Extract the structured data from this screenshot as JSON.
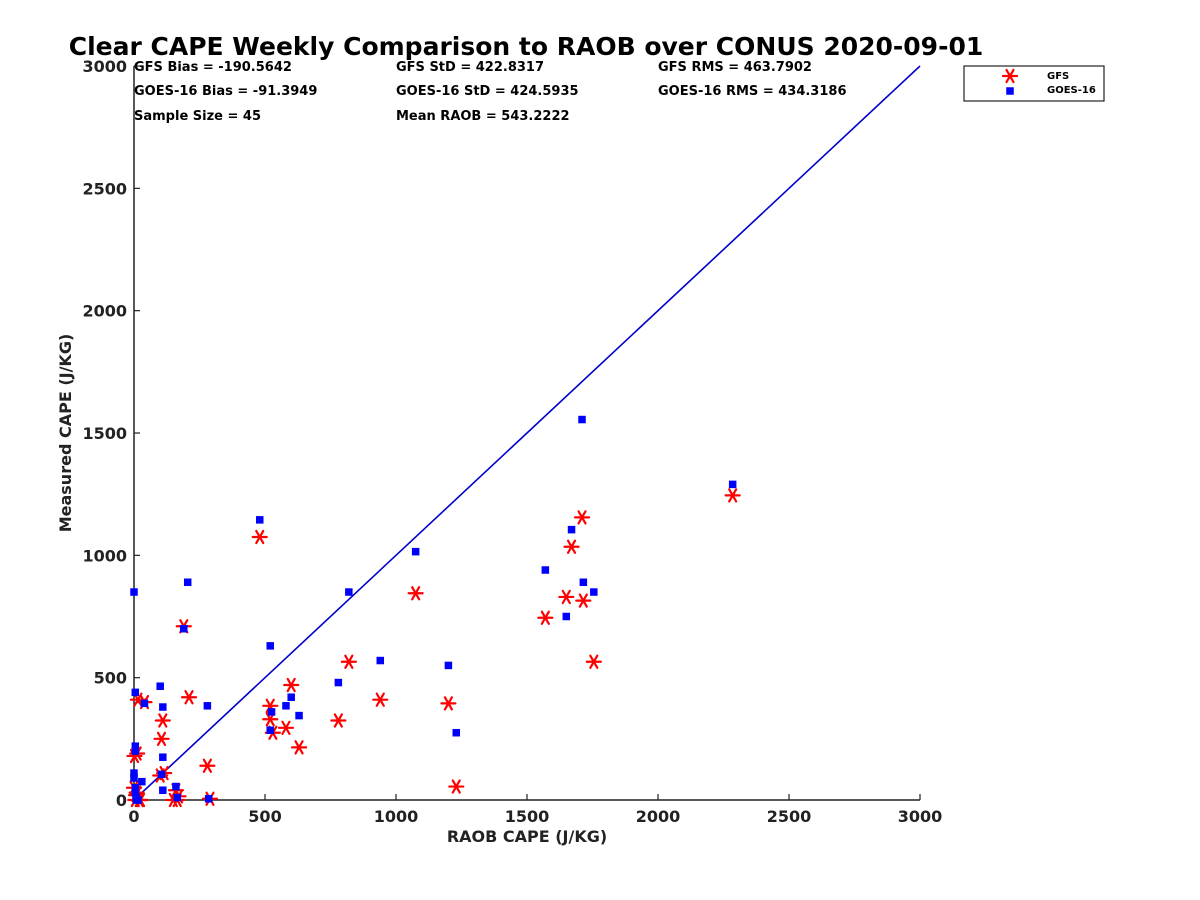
{
  "chart_data": {
    "type": "scatter",
    "title": "Clear CAPE Weekly Comparison to RAOB over CONUS 2020-09-01",
    "xlabel": "RAOB CAPE (J/KG)",
    "ylabel": "Measured CAPE (J/KG)",
    "xlim": [
      0,
      3000
    ],
    "ylim": [
      0,
      3000
    ],
    "xticks": [
      "0",
      "500",
      "1000",
      "1500",
      "2000",
      "2500",
      "3000"
    ],
    "yticks": [
      "0",
      "500",
      "1000",
      "1500",
      "2000",
      "2500",
      "3000"
    ],
    "grid": false,
    "legend_position": "top-right, outside plot area",
    "one_to_one_line": {
      "from": [
        0,
        0
      ],
      "to": [
        3000,
        3000
      ],
      "color": "#0000cc"
    },
    "stats": [
      [
        "GFS Bias = -190.5642",
        "GFS StD = 422.8317",
        "GFS RMS = 463.7902"
      ],
      [
        "GOES-16 Bias = -91.3949",
        "GOES-16 StD = 424.5935",
        "GOES-16 RMS = 434.3186"
      ],
      [
        "Sample Size = 45",
        "Mean RAOB = 543.2222",
        ""
      ]
    ],
    "series": [
      {
        "name": "GFS",
        "marker": "asterisk",
        "color": "#ff0000",
        "points": [
          [
            0,
            50
          ],
          [
            2,
            180
          ],
          [
            5,
            0
          ],
          [
            8,
            20
          ],
          [
            10,
            30
          ],
          [
            12,
            190
          ],
          [
            15,
            410
          ],
          [
            20,
            0
          ],
          [
            25,
            0
          ],
          [
            40,
            400
          ],
          [
            100,
            100
          ],
          [
            105,
            250
          ],
          [
            110,
            325
          ],
          [
            115,
            110
          ],
          [
            150,
            0
          ],
          [
            160,
            40
          ],
          [
            165,
            0
          ],
          [
            170,
            15
          ],
          [
            190,
            710
          ],
          [
            210,
            420
          ],
          [
            280,
            140
          ],
          [
            290,
            5
          ],
          [
            480,
            1075
          ],
          [
            520,
            385
          ],
          [
            520,
            330
          ],
          [
            530,
            275
          ],
          [
            580,
            295
          ],
          [
            600,
            470
          ],
          [
            630,
            215
          ],
          [
            780,
            325
          ],
          [
            820,
            565
          ],
          [
            940,
            410
          ],
          [
            1075,
            845
          ],
          [
            1200,
            395
          ],
          [
            1230,
            55
          ],
          [
            1570,
            745
          ],
          [
            1650,
            830
          ],
          [
            1670,
            1035
          ],
          [
            1710,
            1155
          ],
          [
            1715,
            815
          ],
          [
            1755,
            565
          ],
          [
            2285,
            1245
          ]
        ]
      },
      {
        "name": "GOES-16",
        "marker": "square",
        "color": "#0000ff",
        "points": [
          [
            0,
            850
          ],
          [
            0,
            110
          ],
          [
            0,
            90
          ],
          [
            5,
            440
          ],
          [
            5,
            220
          ],
          [
            5,
            200
          ],
          [
            5,
            50
          ],
          [
            5,
            30
          ],
          [
            8,
            10
          ],
          [
            10,
            0
          ],
          [
            15,
            0
          ],
          [
            30,
            75
          ],
          [
            40,
            395
          ],
          [
            100,
            465
          ],
          [
            105,
            105
          ],
          [
            110,
            380
          ],
          [
            110,
            175
          ],
          [
            110,
            40
          ],
          [
            160,
            55
          ],
          [
            165,
            10
          ],
          [
            190,
            700
          ],
          [
            205,
            890
          ],
          [
            280,
            385
          ],
          [
            285,
            5
          ],
          [
            480,
            1145
          ],
          [
            520,
            630
          ],
          [
            520,
            285
          ],
          [
            525,
            360
          ],
          [
            580,
            385
          ],
          [
            600,
            420
          ],
          [
            630,
            345
          ],
          [
            780,
            480
          ],
          [
            820,
            850
          ],
          [
            940,
            570
          ],
          [
            1075,
            1015
          ],
          [
            1200,
            550
          ],
          [
            1230,
            275
          ],
          [
            1570,
            940
          ],
          [
            1650,
            750
          ],
          [
            1670,
            1105
          ],
          [
            1710,
            1555
          ],
          [
            1715,
            890
          ],
          [
            1755,
            850
          ],
          [
            2285,
            1290
          ]
        ]
      }
    ]
  }
}
